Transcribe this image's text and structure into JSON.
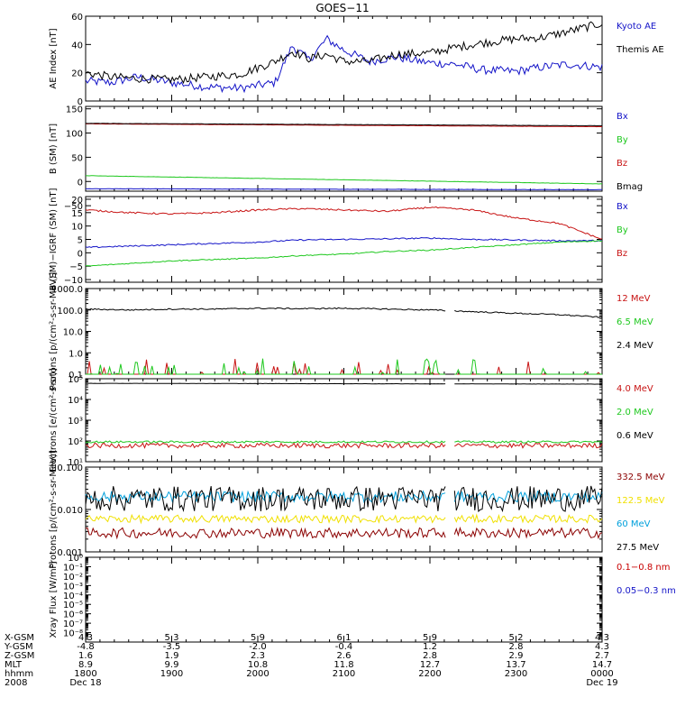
{
  "title": "GOES−11",
  "colors": {
    "black": "#000000",
    "blue": "#1414c8",
    "green": "#1ec81e",
    "red": "#c81414",
    "darkred": "#8b0000",
    "cyan": "#00a0dc",
    "yellow": "#f0e000",
    "xred": "#c80000",
    "xblue": "#1414c8"
  },
  "x_ticks": [
    "1800",
    "1900",
    "2000",
    "2100",
    "2200",
    "2300",
    "0000"
  ],
  "ephemeris": {
    "row_labels": [
      "X-GSM",
      "Y-GSM",
      "Z-GSM",
      "MLT",
      "hhmm",
      "2008"
    ],
    "columns": [
      [
        "4.3",
        "-4.8",
        "1.6",
        "8.9",
        "1800",
        "Dec 18"
      ],
      [
        "5.3",
        "-3.5",
        "1.9",
        "9.9",
        "1900",
        ""
      ],
      [
        "5.9",
        "-2.0",
        "2.3",
        "10.8",
        "2000",
        ""
      ],
      [
        "6.1",
        "-0.4",
        "2.6",
        "11.8",
        "2100",
        ""
      ],
      [
        "5.9",
        "1.2",
        "2.8",
        "12.7",
        "2200",
        ""
      ],
      [
        "5.2",
        "2.8",
        "2.9",
        "13.7",
        "2300",
        ""
      ],
      [
        "4.3",
        "4.3",
        "2.7",
        "14.7",
        "0000",
        "Dec 19"
      ]
    ]
  },
  "chart_data": [
    {
      "type": "line",
      "ylabel": "AE Index [nT]",
      "ylim": [
        0,
        60
      ],
      "yticks": [
        "0",
        "20",
        "40",
        "60"
      ],
      "x_hours": [
        18,
        24
      ],
      "series": [
        {
          "name": "Kyoto AE",
          "color_key": "blue",
          "x": [
            18.0,
            18.3,
            18.6,
            19.0,
            19.4,
            19.8,
            20.2,
            20.4,
            20.6,
            20.8,
            21.0,
            21.3,
            21.6,
            22.0,
            22.3,
            22.6,
            23.0,
            23.3,
            23.6,
            24.0
          ],
          "y": [
            14,
            13,
            17,
            13,
            10,
            9,
            13,
            39,
            29,
            44,
            36,
            28,
            31,
            27,
            26,
            22,
            21,
            24,
            26,
            24
          ]
        },
        {
          "name": "Themis AE",
          "color_key": "black",
          "x": [
            18.0,
            18.3,
            18.6,
            19.0,
            19.4,
            19.8,
            20.2,
            20.4,
            20.6,
            20.8,
            21.0,
            21.3,
            21.6,
            22.0,
            22.3,
            22.6,
            23.0,
            23.3,
            23.6,
            24.0
          ],
          "y": [
            20,
            17,
            16,
            15,
            17,
            19,
            28,
            35,
            30,
            33,
            28,
            28,
            33,
            34,
            38,
            41,
            44,
            45,
            49,
            55
          ]
        }
      ]
    },
    {
      "type": "line",
      "ylabel": "B (SM) [nT]",
      "ylim": [
        -20,
        155
      ],
      "yticks": [
        "150",
        "100",
        "50",
        "0",
        "−50"
      ],
      "ytick_values": [
        150,
        100,
        50,
        0,
        -50
      ],
      "series": [
        {
          "name": "Bx",
          "color_key": "blue",
          "x": [
            18,
            24
          ],
          "y": [
            -15,
            -17
          ]
        },
        {
          "name": "By",
          "color_key": "green",
          "x": [
            18,
            24
          ],
          "y": [
            12,
            -5
          ]
        },
        {
          "name": "Bz",
          "color_key": "red",
          "x": [
            18,
            24
          ],
          "y": [
            119,
            113
          ]
        },
        {
          "name": "Bmag",
          "color_key": "black",
          "x": [
            18,
            24
          ],
          "y": [
            120,
            115
          ]
        }
      ]
    },
    {
      "type": "line",
      "ylabel": "B (SM)−IGRF (SM) [nT]",
      "ylim": [
        -11,
        21
      ],
      "yticks": [
        "20",
        "15",
        "10",
        "5",
        "0",
        "−5",
        "−10"
      ],
      "ytick_values": [
        20,
        15,
        10,
        5,
        0,
        -5,
        -10
      ],
      "series": [
        {
          "name": "Bx",
          "color_key": "blue",
          "x": [
            18.0,
            18.5,
            19.0,
            19.5,
            20.0,
            20.5,
            21.0,
            21.5,
            22.0,
            22.5,
            23.0,
            23.5,
            24.0
          ],
          "y": [
            2,
            2.5,
            3,
            3.5,
            4,
            4.8,
            5,
            5.2,
            5.5,
            5,
            4.8,
            4.5,
            4.5
          ]
        },
        {
          "name": "By",
          "color_key": "green",
          "x": [
            18.0,
            18.5,
            19.0,
            19.5,
            20.0,
            20.5,
            21.0,
            21.5,
            22.0,
            22.5,
            23.0,
            23.5,
            24.0
          ],
          "y": [
            -5,
            -4,
            -3,
            -2.5,
            -2,
            -1,
            -0.5,
            0.5,
            1,
            2,
            3,
            4,
            4.5
          ]
        },
        {
          "name": "Bz",
          "color_key": "red",
          "x": [
            18.0,
            18.5,
            19.0,
            19.5,
            20.0,
            20.5,
            21.0,
            21.5,
            22.0,
            22.5,
            23.0,
            23.5,
            24.0
          ],
          "y": [
            16,
            15,
            14.5,
            15,
            16,
            16.5,
            16,
            15.5,
            17,
            16,
            13,
            11,
            5
          ]
        }
      ]
    },
    {
      "type": "line",
      "scale": "log",
      "ylabel": "Protons [p/(cm²-s-sr-MeV)]",
      "ylim": [
        0.1,
        1000
      ],
      "yticks": [
        "1000.0",
        "100.0",
        "10.0",
        "1.0",
        "0.1"
      ],
      "ytick_values": [
        1000,
        100,
        10,
        1,
        0.1
      ],
      "gaps": [
        [
          22.18,
          22.28
        ]
      ],
      "series": [
        {
          "name": "12 MeV",
          "color_key": "red",
          "x": [
            18,
            24
          ],
          "y": [
            0.12,
            0.12
          ]
        },
        {
          "name": "6.5 MeV",
          "color_key": "green",
          "x": [
            18,
            24
          ],
          "y": [
            0.2,
            0.2
          ]
        },
        {
          "name": "2.4 MeV",
          "color_key": "black",
          "x": [
            18.0,
            18.5,
            19.0,
            19.5,
            20.0,
            20.5,
            21.0,
            21.5,
            22.0,
            22.3,
            22.6,
            23.0,
            23.5,
            24.0
          ],
          "y": [
            110,
            100,
            110,
            110,
            120,
            115,
            120,
            110,
            100,
            90,
            80,
            70,
            60,
            45
          ]
        }
      ]
    },
    {
      "type": "line",
      "scale": "log",
      "ylabel": "Electrons [e/(cm²-s-sr)]",
      "ylim": [
        10,
        100000
      ],
      "yticks": [
        "10⁵",
        "10⁴",
        "10³",
        "10²",
        "10¹"
      ],
      "ytick_values": [
        100000,
        10000,
        1000,
        100,
        10
      ],
      "gaps": [
        [
          22.18,
          22.28
        ]
      ],
      "series": [
        {
          "name": "4.0 MeV",
          "color_key": "red",
          "x": [
            18,
            24
          ],
          "y": [
            60,
            60
          ]
        },
        {
          "name": "2.0 MeV",
          "color_key": "green",
          "x": [
            18,
            24
          ],
          "y": [
            90,
            90
          ]
        },
        {
          "name": "0.6 MeV",
          "color_key": "black",
          "x": [
            18,
            24
          ],
          "y": [
            60000,
            55000
          ]
        }
      ]
    },
    {
      "type": "line",
      "scale": "log",
      "ylabel": "Protons [p/(cm²-s-sr-MeV)]",
      "ylim": [
        0.001,
        0.1
      ],
      "yticks": [
        "0.100",
        "0.010",
        "0.001"
      ],
      "ytick_values": [
        0.1,
        0.01,
        0.001
      ],
      "gaps": [
        [
          22.18,
          22.28
        ]
      ],
      "series": [
        {
          "name": "332.5 MeV",
          "color_key": "darkred",
          "x": [
            18,
            24
          ],
          "y": [
            0.0028,
            0.0028
          ]
        },
        {
          "name": "122.5 MeV",
          "color_key": "yellow",
          "x": [
            18,
            24
          ],
          "y": [
            0.006,
            0.006
          ]
        },
        {
          "name": "60 MeV",
          "color_key": "cyan",
          "x": [
            18,
            24
          ],
          "y": [
            0.02,
            0.02
          ]
        },
        {
          "name": "27.5 MeV",
          "color_key": "black",
          "x": [
            18,
            24
          ],
          "y": [
            0.018,
            0.018
          ]
        }
      ]
    },
    {
      "type": "line",
      "scale": "log",
      "ylabel": "Xray Flux [W/m²]",
      "ylim": [
        1e-09,
        1
      ],
      "yticks": [
        "10⁰",
        "10⁻¹",
        "10⁻²",
        "10⁻³",
        "10⁻⁴",
        "10⁻⁵",
        "10⁻⁶",
        "10⁻⁷",
        "10⁻⁸"
      ],
      "ytick_values": [
        1,
        0.1,
        0.01,
        0.001,
        0.0001,
        1e-05,
        1e-06,
        1e-07,
        1e-08
      ],
      "series": [
        {
          "name": "0.1−0.8 nm",
          "color_key": "xred",
          "x": [],
          "y": []
        },
        {
          "name": "0.05−0.3 nm",
          "color_key": "xblue",
          "x": [],
          "y": []
        }
      ]
    }
  ]
}
